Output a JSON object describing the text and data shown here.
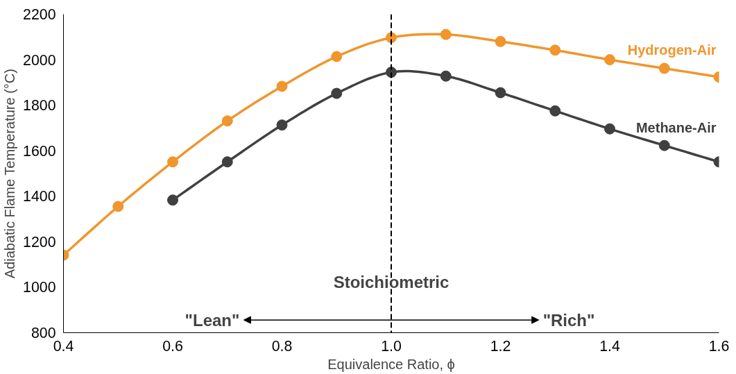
{
  "chart_data": {
    "type": "line",
    "xlabel": "Equivalence Ratio, ϕ",
    "ylabel": "Adiabatic Flame Temperature (°C)",
    "x": [
      0.4,
      0.5,
      0.6,
      0.7,
      0.8,
      0.9,
      1.0,
      1.1,
      1.2,
      1.3,
      1.4,
      1.5,
      1.6
    ],
    "series": [
      {
        "name": "Hydrogen-Air",
        "color": "#f0962d",
        "values": [
          1141,
          1355,
          1551,
          1731,
          1883,
          2014,
          2097,
          2111,
          2080,
          2042,
          2000,
          1962,
          1924
        ]
      },
      {
        "name": "Methane-Air",
        "color": "#404040",
        "values": [
          null,
          null,
          1383,
          1551,
          1713,
          1852,
          1945,
          1928,
          1855,
          1775,
          1696,
          1623,
          1551
        ]
      }
    ],
    "xlim": [
      0.4,
      1.6
    ],
    "xticks": [
      {
        "value": 0.4,
        "label": "0.4"
      },
      {
        "value": 0.6,
        "label": "0.6"
      },
      {
        "value": 0.8,
        "label": "0.8"
      },
      {
        "value": 1.0,
        "label": "1.0"
      },
      {
        "value": 1.2,
        "label": "1.2"
      },
      {
        "value": 1.4,
        "label": "1.4"
      },
      {
        "value": 1.6,
        "label": "1.6"
      }
    ],
    "ylim": [
      800,
      2200
    ],
    "yticks": [
      800,
      1000,
      1200,
      1400,
      1600,
      1800,
      2000,
      2200
    ],
    "ref_lines": [
      {
        "axis": "x",
        "value": 1.0,
        "label": "Stoichiometric",
        "color": "#000000",
        "line_style": "dashed"
      }
    ],
    "annotations": [
      "\"Lean\"",
      "\"Rich\""
    ],
    "marker": "circle",
    "line_style": "solid",
    "grid": false
  }
}
